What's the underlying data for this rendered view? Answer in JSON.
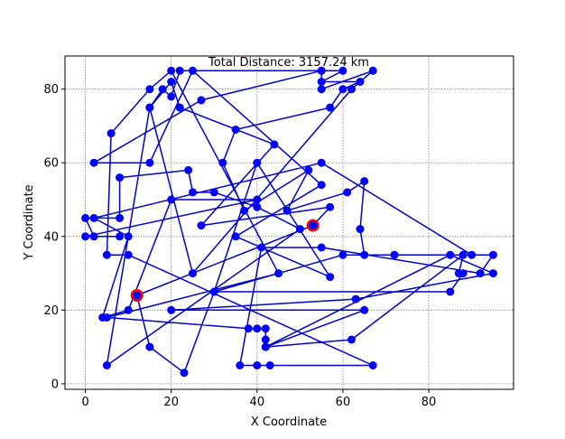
{
  "chart_data": {
    "type": "line",
    "title": "Total Distance: 3157.24 km",
    "xlabel": "X Coordinate",
    "ylabel": "Y Coordinate",
    "xlim": [
      -4.75,
      99.75
    ],
    "ylim": [
      -1.5,
      89.0
    ],
    "xticks": [
      0,
      20,
      40,
      60,
      80
    ],
    "yticks": [
      0,
      20,
      40,
      60,
      80
    ],
    "grid": true,
    "colors": {
      "route": "#0000cc",
      "city": "#0000ff",
      "highlight": "#ff0000",
      "grid": "#808080"
    },
    "series": [
      {
        "points": [
          [
            53,
            43
          ],
          [
            12,
            24
          ],
          [
            15,
            10
          ],
          [
            23,
            3
          ],
          [
            30,
            25
          ],
          [
            60,
            35
          ],
          [
            95,
            35
          ],
          [
            92,
            30
          ],
          [
            55,
            37
          ],
          [
            41,
            37
          ],
          [
            36,
            5
          ],
          [
            40,
            5
          ],
          [
            43,
            5
          ],
          [
            67,
            5
          ],
          [
            10,
            35
          ],
          [
            5,
            35
          ],
          [
            6,
            68
          ],
          [
            15,
            80
          ],
          [
            20,
            85
          ],
          [
            45,
            30
          ],
          [
            5,
            18
          ],
          [
            38,
            15
          ],
          [
            40,
            15
          ],
          [
            42,
            15
          ],
          [
            42,
            12
          ],
          [
            42,
            10
          ],
          [
            85,
            35
          ],
          [
            95,
            30
          ],
          [
            63,
            23
          ],
          [
            20,
            20
          ],
          [
            65,
            20
          ],
          [
            42,
            10
          ],
          [
            62,
            12
          ],
          [
            88,
            35
          ],
          [
            87,
            30
          ],
          [
            88,
            30
          ],
          [
            85,
            25
          ],
          [
            30,
            25
          ],
          [
            40,
            60
          ],
          [
            57,
            29
          ],
          [
            35,
            40
          ],
          [
            55,
            54
          ],
          [
            25,
            85
          ],
          [
            15,
            60
          ],
          [
            2,
            60
          ],
          [
            27,
            77
          ],
          [
            55,
            85
          ],
          [
            55,
            80
          ],
          [
            67,
            85
          ],
          [
            62,
            80
          ],
          [
            25,
            30
          ],
          [
            15,
            75
          ],
          [
            18,
            80
          ],
          [
            20,
            78
          ],
          [
            22,
            85
          ],
          [
            60,
            85
          ],
          [
            55,
            82
          ],
          [
            64,
            82
          ],
          [
            60,
            80
          ],
          [
            57,
            75
          ],
          [
            35,
            69
          ],
          [
            32,
            60
          ],
          [
            37,
            47
          ],
          [
            52,
            58
          ],
          [
            47,
            47
          ],
          [
            61,
            52
          ],
          [
            65,
            55
          ],
          [
            64,
            42
          ],
          [
            65,
            35
          ],
          [
            72,
            35
          ],
          [
            90,
            35
          ],
          [
            55,
            60
          ],
          [
            2,
            45
          ],
          [
            10,
            40
          ],
          [
            4,
            18
          ],
          [
            10,
            20
          ],
          [
            20,
            50
          ],
          [
            40,
            50
          ],
          [
            0,
            40
          ],
          [
            8,
            40
          ],
          [
            2,
            40
          ],
          [
            0,
            45
          ],
          [
            8,
            45
          ],
          [
            8,
            56
          ],
          [
            24,
            58
          ],
          [
            25,
            52
          ],
          [
            30,
            52
          ],
          [
            40,
            48
          ],
          [
            50,
            42
          ],
          [
            5,
            5
          ],
          [
            15,
            75
          ],
          [
            20,
            82
          ],
          [
            22,
            75
          ],
          [
            44,
            65
          ],
          [
            27,
            43
          ],
          [
            57,
            48
          ],
          [
            53,
            43
          ]
        ]
      }
    ],
    "highlight_points": [
      [
        53,
        43
      ],
      [
        12,
        24
      ]
    ]
  }
}
